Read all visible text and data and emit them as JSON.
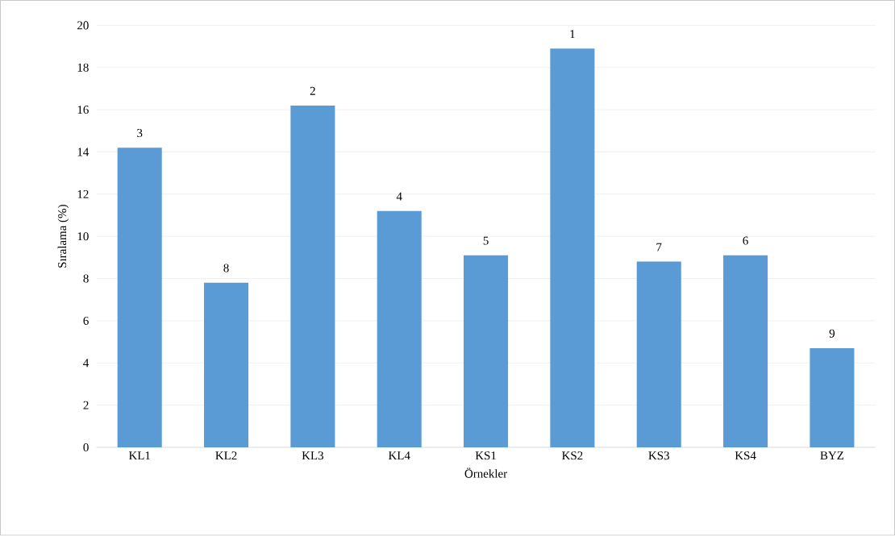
{
  "chart_data": {
    "type": "bar",
    "xlabel": "Örnekler",
    "ylabel": "Sıralama (%)",
    "categories": [
      "KL1",
      "KL2",
      "KL3",
      "KL4",
      "KS1",
      "KS2",
      "KS3",
      "KS4",
      "BYZ"
    ],
    "values": [
      14.2,
      7.8,
      16.2,
      11.2,
      9.1,
      18.9,
      8.8,
      9.1,
      4.7
    ],
    "annotations": [
      {
        "text": "3",
        "x": "KL1",
        "y": 14.2
      },
      {
        "text": "8",
        "x": "KL2",
        "y": 7.8
      },
      {
        "text": "2",
        "x": "KL3",
        "y": 16.2
      },
      {
        "text": "4",
        "x": "KL4",
        "y": 11.2
      },
      {
        "text": "5",
        "x": "KS1",
        "y": 9.1
      },
      {
        "text": "1",
        "x": "KS2",
        "y": 18.9
      },
      {
        "text": "7",
        "x": "KS3",
        "y": 8.8
      },
      {
        "text": "6",
        "x": "KS4",
        "y": 9.1
      },
      {
        "text": "9",
        "x": "BYZ",
        "y": 4.7
      }
    ],
    "color": "#5b9bd5",
    "ylim": [
      0,
      20
    ],
    "yticks": [
      0,
      2,
      4,
      6,
      8,
      10,
      12,
      14,
      16,
      18,
      20
    ],
    "grid": "y"
  }
}
